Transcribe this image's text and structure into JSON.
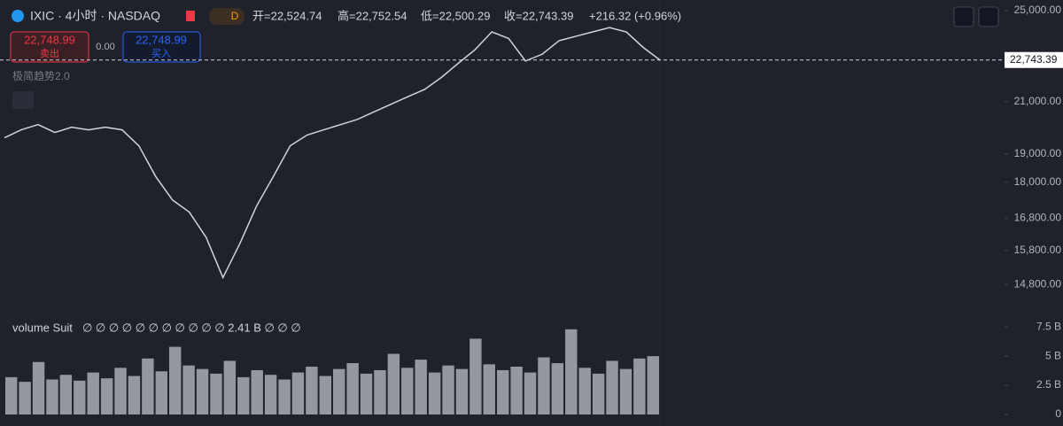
{
  "header": {
    "symbol": "IXIC · 4小时 · NASDAQ",
    "badge": "D",
    "open": "开=22,524.74",
    "high": "高=22,752.54",
    "low": "低=22,500.29",
    "close": "收=22,743.39",
    "change": "+216.32 (+0.96%)",
    "sell_price": "22,748.99",
    "sell_label": "卖出",
    "spread": "0.00",
    "buy_price": "22,748.99",
    "buy_label": "买入",
    "indicator": "极简趋势2.0"
  },
  "chart_data": [
    {
      "type": "line",
      "log_scale": true,
      "color": "#d1d4dc",
      "ylim": [
        13980,
        25510
      ],
      "yticks": [
        {
          "value": 25000,
          "label": "25,000.00"
        },
        {
          "value": 21000,
          "label": "21,000.00"
        },
        {
          "value": 19000,
          "label": "19,000.00"
        },
        {
          "value": 18000,
          "label": "18,000.00"
        },
        {
          "value": 16800,
          "label": "16,800.00"
        },
        {
          "value": 15800,
          "label": "15,800.00"
        },
        {
          "value": 14800,
          "label": "14,800.00"
        }
      ],
      "last_price": {
        "value": 22743.39,
        "label": "22,743.39"
      },
      "values": [
        19600,
        19900,
        20100,
        19800,
        20000,
        19900,
        20000,
        19900,
        19300,
        18200,
        17400,
        17000,
        16200,
        15000,
        16000,
        17200,
        18200,
        19300,
        19700,
        19900,
        20100,
        20300,
        20600,
        20900,
        21200,
        21500,
        22000,
        22600,
        23200,
        24000,
        23700,
        22700,
        23000,
        23600,
        23800,
        24000,
        24200,
        24000,
        23300,
        22743
      ]
    },
    {
      "type": "bar",
      "color": "#9598a1",
      "legend": "volume Suit",
      "legend_values": "∅ ∅ ∅ ∅ ∅ ∅ ∅ ∅ ∅ ∅ ∅ 2.41 B ∅ ∅ ∅",
      "ylim": [
        0,
        8.2
      ],
      "yticks": [
        {
          "value": 7.5,
          "label": "7.5 B"
        },
        {
          "value": 5,
          "label": "5 B"
        },
        {
          "value": 2.5,
          "label": "2.5 B"
        },
        0
      ],
      "values": [
        3.2,
        2.8,
        4.5,
        3.0,
        3.4,
        2.9,
        3.6,
        3.1,
        4.0,
        3.3,
        4.8,
        3.7,
        5.8,
        4.2,
        3.9,
        3.5,
        4.6,
        3.2,
        3.8,
        3.4,
        3.0,
        3.6,
        4.1,
        3.3,
        3.9,
        4.4,
        3.5,
        3.8,
        5.2,
        4.0,
        4.7,
        3.6,
        4.2,
        3.9,
        6.5,
        4.3,
        3.8,
        4.1,
        3.6,
        4.9,
        4.4,
        7.3,
        4.0,
        3.5,
        4.6,
        3.9,
        4.8,
        5.0
      ]
    }
  ]
}
